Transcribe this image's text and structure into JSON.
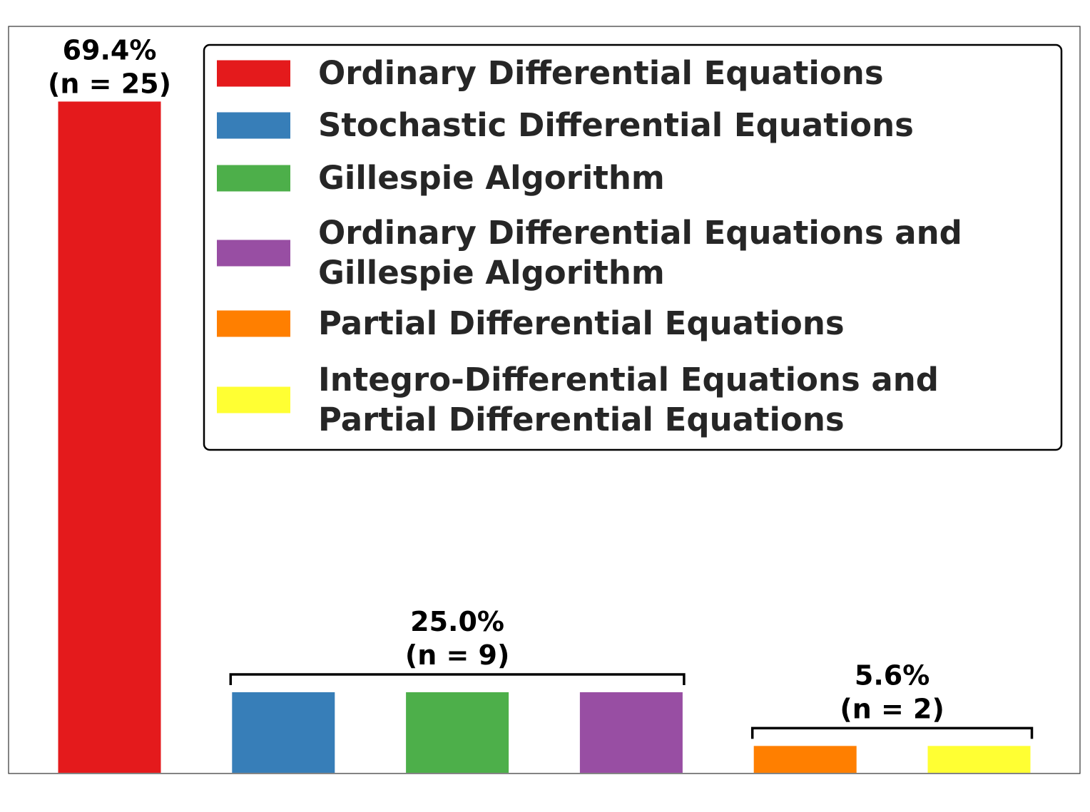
{
  "chart_data": {
    "type": "bar",
    "title": "",
    "xlabel": "",
    "ylabel": "",
    "ylim": [
      0,
      27.8
    ],
    "grid": false,
    "legend_position": "top-right",
    "bars": [
      {
        "category": "Ordinary Differential Equations",
        "value": 25,
        "color": "#e41a1c"
      },
      {
        "category": "Stochastic Differential Equations",
        "value": 3,
        "color": "#377eb8"
      },
      {
        "category": "Gillespie Algorithm",
        "value": 3,
        "color": "#4daf4a"
      },
      {
        "category": "Ordinary Differential Equations and Gillespie Algorithm",
        "value": 3,
        "color": "#984ea3"
      },
      {
        "category": "Partial Differential Equations",
        "value": 1,
        "color": "#ff7f00"
      },
      {
        "category": "Integro-Differential Equations and Partial Differential Equations",
        "value": 1,
        "color": "#ffff33"
      }
    ],
    "legend": [
      {
        "lines": [
          "Ordinary Differential Equations"
        ],
        "color": "#e41a1c"
      },
      {
        "lines": [
          "Stochastic Differential Equations"
        ],
        "color": "#377eb8"
      },
      {
        "lines": [
          "Gillespie Algorithm"
        ],
        "color": "#4daf4a"
      },
      {
        "lines": [
          "Ordinary Differential Equations and",
          "Gillespie Algorithm"
        ],
        "color": "#984ea3"
      },
      {
        "lines": [
          "Partial Differential Equations"
        ],
        "color": "#ff7f00"
      },
      {
        "lines": [
          "Integro-Differential Equations and",
          "Partial Differential Equations"
        ],
        "color": "#ffff33"
      }
    ],
    "groups": [
      {
        "bars": [
          0
        ],
        "percent_label": "69.4%",
        "n_label": "(n = 25)",
        "bracket": false
      },
      {
        "bars": [
          1,
          2,
          3
        ],
        "percent_label": "25.0%",
        "n_label": "(n = 9)",
        "bracket": true
      },
      {
        "bars": [
          4,
          5
        ],
        "percent_label": "5.6%",
        "n_label": "(n = 2)",
        "bracket": true
      }
    ]
  }
}
